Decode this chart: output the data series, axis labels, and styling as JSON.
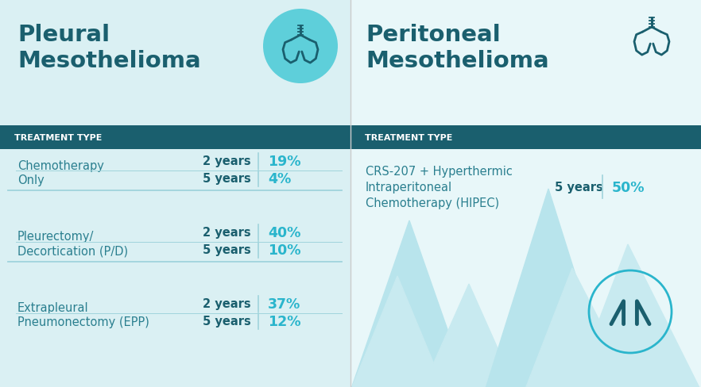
{
  "left_title_line1": "Pleural",
  "left_title_line2": "Mesothelioma",
  "right_title_line1": "Peritoneal",
  "right_title_line2": "Mesothelioma",
  "header_label": "TREATMENT TYPE",
  "left_bg_color": "#daf0f3",
  "right_bg_color": "#e8f7f9",
  "header_bg_color": "#1a5f6e",
  "header_text_color": "#ffffff",
  "title_color": "#1a5f6e",
  "treatment_color": "#2a7f8f",
  "divider_color": "#a0d4dc",
  "value_color": "#2ab5cc",
  "year_label_color": "#1a5f6e",
  "left_treatments": [
    {
      "name_line1": "Chemotherapy",
      "name_line2": "Only",
      "rows": [
        {
          "period": "2 years",
          "value": "19%"
        },
        {
          "period": "5 years",
          "value": "4%"
        }
      ]
    },
    {
      "name_line1": "Pleurectomy/",
      "name_line2": "Decortication (P/D)",
      "rows": [
        {
          "period": "2 years",
          "value": "40%"
        },
        {
          "period": "5 years",
          "value": "10%"
        }
      ]
    },
    {
      "name_line1": "Extrapleural",
      "name_line2": "Pneumonectomy (EPP)",
      "rows": [
        {
          "period": "2 years",
          "value": "37%"
        },
        {
          "period": "5 years",
          "value": "12%"
        }
      ]
    }
  ],
  "right_treatment": {
    "name_line1": "CRS-207 + Hyperthermic",
    "name_line2": "Intraperitoneal",
    "name_line3": "Chemotherapy (HIPEC)",
    "period": "5 years",
    "value": "50%"
  },
  "lung_circle_color": "#5ecfda",
  "lung_icon_color": "#1a5f6e",
  "m_circle_color": "#2ab5cc",
  "m_icon_color": "#1a5f6e",
  "bg_mountain_color1": "#b8e4ec",
  "bg_mountain_color2": "#c8eaf0",
  "separator_line_color": "#cccccc"
}
